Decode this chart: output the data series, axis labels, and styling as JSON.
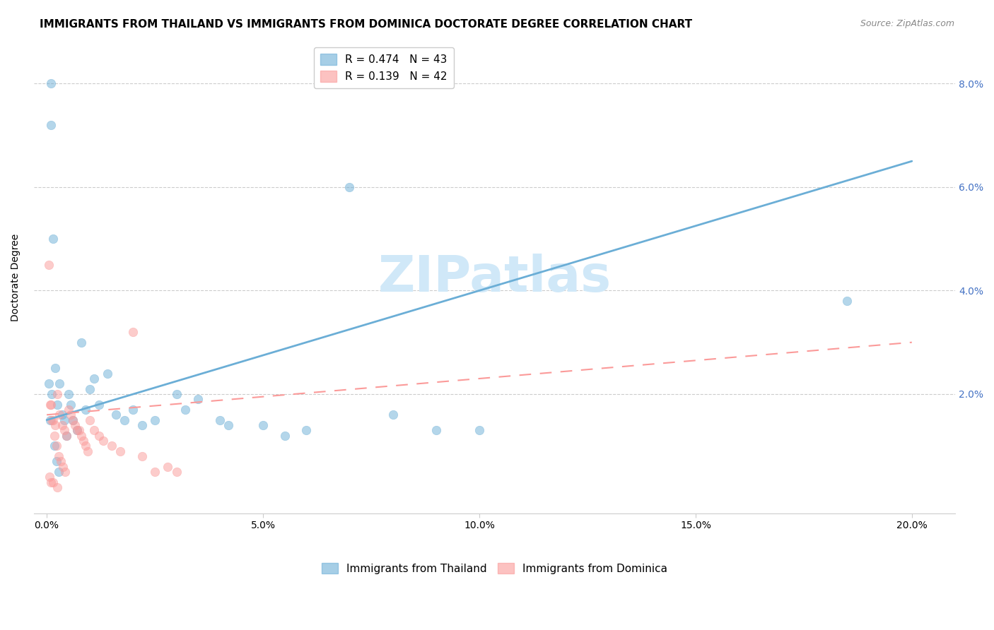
{
  "title": "IMMIGRANTS FROM THAILAND VS IMMIGRANTS FROM DOMINICA DOCTORATE DEGREE CORRELATION CHART",
  "source": "Source: ZipAtlas.com",
  "ylabel": "Doctorate Degree",
  "x_tick_labels": [
    "0.0%",
    "5.0%",
    "10.0%",
    "15.0%",
    "20.0%"
  ],
  "x_tick_values": [
    0.0,
    5.0,
    10.0,
    15.0,
    20.0
  ],
  "y_tick_labels": [
    "2.0%",
    "4.0%",
    "6.0%",
    "8.0%"
  ],
  "y_tick_values": [
    2.0,
    4.0,
    6.0,
    8.0
  ],
  "xlim": [
    -0.3,
    21.0
  ],
  "ylim": [
    -0.3,
    8.8
  ],
  "thailand_scatter_x": [
    0.1,
    0.1,
    0.15,
    0.2,
    0.25,
    0.3,
    0.35,
    0.4,
    0.45,
    0.5,
    0.55,
    0.6,
    0.7,
    0.8,
    0.9,
    1.0,
    1.1,
    1.2,
    1.4,
    1.6,
    1.8,
    2.0,
    2.2,
    2.5,
    3.0,
    3.2,
    3.5,
    4.0,
    4.2,
    5.0,
    5.5,
    6.0,
    7.0,
    8.0,
    9.0,
    10.0,
    18.5,
    0.05,
    0.08,
    0.12,
    0.18,
    0.22,
    0.28
  ],
  "thailand_scatter_y": [
    8.0,
    7.2,
    5.0,
    2.5,
    1.8,
    2.2,
    1.6,
    1.5,
    1.2,
    2.0,
    1.8,
    1.5,
    1.3,
    3.0,
    1.7,
    2.1,
    2.3,
    1.8,
    2.4,
    1.6,
    1.5,
    1.7,
    1.4,
    1.5,
    2.0,
    1.7,
    1.9,
    1.5,
    1.4,
    1.4,
    1.2,
    1.3,
    6.0,
    1.6,
    1.3,
    1.3,
    3.8,
    2.2,
    1.5,
    2.0,
    1.0,
    0.7,
    0.5
  ],
  "dominica_scatter_x": [
    0.05,
    0.1,
    0.15,
    0.2,
    0.25,
    0.3,
    0.35,
    0.4,
    0.45,
    0.5,
    0.6,
    0.7,
    0.8,
    0.9,
    1.0,
    1.2,
    1.5,
    2.0,
    2.5,
    3.0,
    0.08,
    0.12,
    0.18,
    0.22,
    0.28,
    0.32,
    0.38,
    0.42,
    0.55,
    0.65,
    0.75,
    0.85,
    0.95,
    1.1,
    1.3,
    1.7,
    2.2,
    2.8,
    0.06,
    0.09,
    0.14,
    0.25
  ],
  "dominica_scatter_y": [
    4.5,
    1.8,
    1.5,
    1.4,
    2.0,
    1.6,
    1.4,
    1.3,
    1.2,
    1.7,
    1.5,
    1.3,
    1.2,
    1.0,
    1.5,
    1.2,
    1.0,
    3.2,
    0.5,
    0.5,
    1.8,
    1.5,
    1.2,
    1.0,
    0.8,
    0.7,
    0.6,
    0.5,
    1.6,
    1.4,
    1.3,
    1.1,
    0.9,
    1.3,
    1.1,
    0.9,
    0.8,
    0.6,
    0.4,
    0.3,
    0.3,
    0.2
  ],
  "thailand_line_x": [
    0.0,
    20.0
  ],
  "thailand_line_y": [
    1.5,
    6.5
  ],
  "dominica_line_x": [
    0.0,
    20.0
  ],
  "dominica_line_y": [
    1.6,
    3.0
  ],
  "thailand_color": "#6baed6",
  "dominica_color": "#fb9a99",
  "watermark_text": "ZIPatlas",
  "watermark_color": "#d0e8f8",
  "grid_color": "#cccccc",
  "background_color": "#ffffff",
  "title_fontsize": 11,
  "source_fontsize": 9,
  "axis_label_fontsize": 10,
  "tick_fontsize": 10,
  "legend_fontsize": 11,
  "scatter_size": 80,
  "scatter_alpha": 0.5,
  "scatter_linewidth": 0.5,
  "r_legend_line1": "R = 0.474   N = 43",
  "r_legend_line2": "R = 0.139   N = 42",
  "bottom_legend_1": "Immigrants from Thailand",
  "bottom_legend_2": "Immigrants from Dominica"
}
